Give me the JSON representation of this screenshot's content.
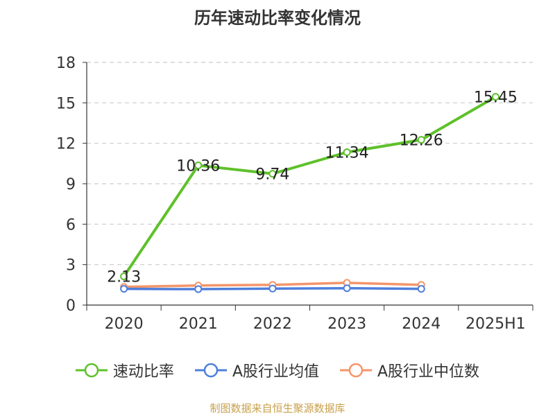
{
  "chart_data": {
    "type": "line",
    "title": "历年速动比率变化情况",
    "categories": [
      "2020",
      "2021",
      "2022",
      "2023",
      "2024",
      "2025H1"
    ],
    "ylim": [
      0,
      18
    ],
    "yticks": [
      "0",
      "3",
      "6",
      "9",
      "12",
      "15",
      "18"
    ],
    "grid": true,
    "legend_position": "bottom",
    "series": [
      {
        "name": "速动比率",
        "color": "#5ec12a",
        "values": [
          2.13,
          10.36,
          9.74,
          11.34,
          12.26,
          15.45
        ],
        "labels": [
          "2.13",
          "10.36",
          "9.74",
          "11.34",
          "12.26",
          "15.45"
        ]
      },
      {
        "name": "A股行业均值",
        "color": "#4e7fdb",
        "values": [
          1.2,
          1.18,
          1.22,
          1.25,
          1.2,
          null
        ]
      },
      {
        "name": "A股行业中位数",
        "color": "#f4956a",
        "values": [
          1.35,
          1.45,
          1.5,
          1.65,
          1.5,
          null
        ]
      }
    ],
    "source": "制图数据来自恒生聚源数据库"
  }
}
